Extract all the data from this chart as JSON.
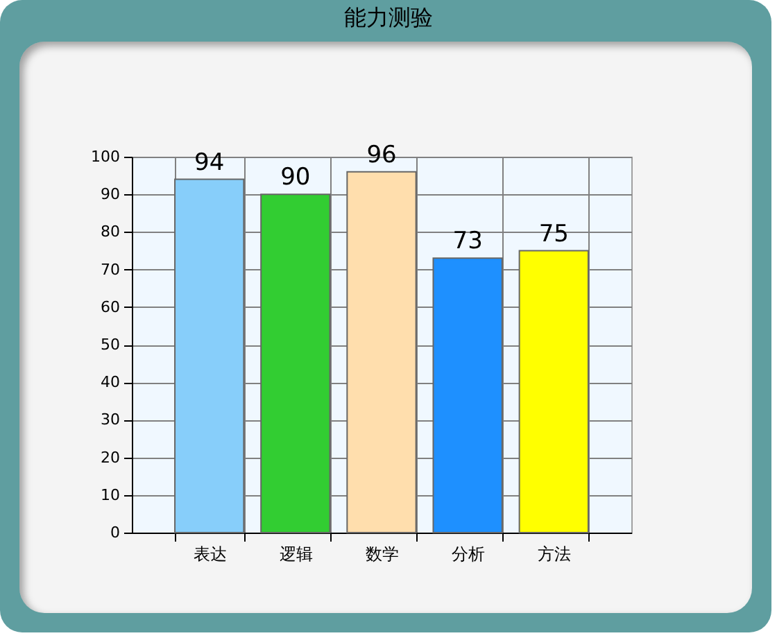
{
  "chart_data": {
    "type": "bar",
    "title": "能力测验",
    "categories": [
      "表达",
      "逻辑",
      "数学",
      "分析",
      "方法"
    ],
    "values": [
      94,
      90,
      96,
      73,
      75
    ],
    "colors": [
      "#87cefa",
      "#32cd32",
      "#ffdead",
      "#1e90ff",
      "#ffff00"
    ],
    "ylim": [
      0,
      100
    ],
    "yticks": [
      0,
      10,
      20,
      30,
      40,
      50,
      60,
      70,
      80,
      90,
      100
    ],
    "grid": true,
    "data_labels": true
  }
}
